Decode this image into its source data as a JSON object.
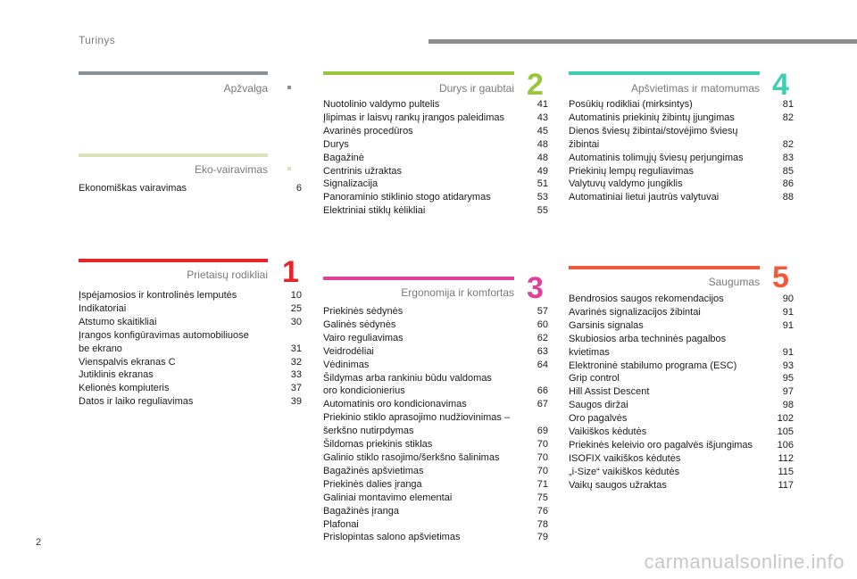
{
  "header": {
    "title": "Turinys"
  },
  "page_number": "2",
  "watermark": "carmanualsonline.info",
  "sections": {
    "apzvalga": {
      "title": "Apžvalga",
      "color": "#8c9196",
      "entries": []
    },
    "eko": {
      "title": "Eko-vairavimas",
      "color": "#dfe3bc",
      "entries": [
        {
          "label": "Ekonomiškas vairavimas",
          "page": "6"
        }
      ]
    },
    "prietaisu": {
      "title": "Prietaisų rodikliai",
      "number": "1",
      "color": "#e8232a",
      "entries": [
        {
          "label": "Įspėjamosios ir kontrolinės lemputės",
          "page": "10"
        },
        {
          "label": "Indikatoriai",
          "page": "25"
        },
        {
          "label": "Atstumo skaitikliai",
          "page": "30"
        },
        {
          "label": "Įrangos konfigūravimas automobiliuose\nbe ekrano",
          "page": "31"
        },
        {
          "label": "Vienspalvis ekranas C",
          "page": "32"
        },
        {
          "label": "Jutiklinis ekranas",
          "page": "33"
        },
        {
          "label": "Kelionės kompiuteris",
          "page": "37"
        },
        {
          "label": "Datos ir laiko reguliavimas",
          "page": "39"
        }
      ]
    },
    "durys": {
      "title": "Durys ir gaubtai",
      "number": "2",
      "color": "#9bc53d",
      "entries": [
        {
          "label": "Nuotolinio valdymo pultelis",
          "page": "41"
        },
        {
          "label": "Įlipimas ir laisvų rankų įrangos paleidimas",
          "page": "43"
        },
        {
          "label": "Avarinės procedūros",
          "page": "45"
        },
        {
          "label": "Durys",
          "page": "48"
        },
        {
          "label": "Bagažinė",
          "page": "48"
        },
        {
          "label": "Centrinis užraktas",
          "page": "49"
        },
        {
          "label": "Signalizacija",
          "page": "51"
        },
        {
          "label": "Panoraminio stiklinio stogo atidarymas",
          "page": "53"
        },
        {
          "label": "Elektriniai stiklų kėlikliai",
          "page": "55"
        }
      ]
    },
    "ergonomija": {
      "title": "Ergonomija ir komfortas",
      "number": "3",
      "color": "#e0409a",
      "entries": [
        {
          "label": "Priekinės sėdynės",
          "page": "57"
        },
        {
          "label": "Galinės sėdynės",
          "page": "60"
        },
        {
          "label": "Vairo reguliavimas",
          "page": "62"
        },
        {
          "label": "Veidrodėliai",
          "page": "63"
        },
        {
          "label": "Vėdinimas",
          "page": "64"
        },
        {
          "label": "Šildymas arba rankiniu būdu valdomas\noro kondicionierius",
          "page": "66"
        },
        {
          "label": "Automatinis oro kondicionavimas",
          "page": "67"
        },
        {
          "label": "Priekinio stiklo aprasojimo nudžiovinimas –\nšerkšno nutirpdymas",
          "page": "69"
        },
        {
          "label": "Šildomas priekinis stiklas",
          "page": "70"
        },
        {
          "label": "Galinio stiklo rasojimo/šerkšno šalinimas",
          "page": "70"
        },
        {
          "label": "Bagažinės apšvietimas",
          "page": "70"
        },
        {
          "label": "Priekinės dalies įranga",
          "page": "71"
        },
        {
          "label": "Galiniai montavimo elementai",
          "page": "75"
        },
        {
          "label": "Bagažinės įranga",
          "page": "76"
        },
        {
          "label": "Plafonai",
          "page": "78"
        },
        {
          "label": "Prislopintas salono apšvietimas",
          "page": "79"
        }
      ]
    },
    "apsvietimas": {
      "title": "Apšvietimas ir matomumas",
      "number": "4",
      "color": "#3ccfb0",
      "entries": [
        {
          "label": "Posūkių rodikliai (mirksintys)",
          "page": "81"
        },
        {
          "label": "Automatinis priekinių žibintų įjungimas",
          "page": "82"
        },
        {
          "label": "Dienos šviesų žibintai/stovėjimo šviesų\nžibintai",
          "page": "82"
        },
        {
          "label": "Automatinis tolimųjų šviesų perjungimas",
          "page": "83"
        },
        {
          "label": "Priekinių lempų reguliavimas",
          "page": "85"
        },
        {
          "label": "Valytuvų valdymo jungiklis",
          "page": "86"
        },
        {
          "label": "Automatiniai lietui jautrūs valytuvai",
          "page": "88"
        }
      ]
    },
    "saugumas": {
      "title": "Saugumas",
      "number": "5",
      "color": "#f05a3c",
      "entries": [
        {
          "label": "Bendrosios saugos rekomendacijos",
          "page": "90"
        },
        {
          "label": "Avarinės signalizacijos žibintai",
          "page": "91"
        },
        {
          "label": "Garsinis signalas",
          "page": "91"
        },
        {
          "label": "Skubiosios arba techninės pagalbos\nkvietimas",
          "page": "91"
        },
        {
          "label": "Elektroninė stabilumo programa (ESC)",
          "page": "93"
        },
        {
          "label": "Grip control",
          "page": "95"
        },
        {
          "label": "Hill Assist Descent",
          "page": "97"
        },
        {
          "label": "Saugos diržai",
          "page": "98"
        },
        {
          "label": "Oro pagalvės",
          "page": "102"
        },
        {
          "label": "Vaikiškos kėdutės",
          "page": "105"
        },
        {
          "label": "Priekinės keleivio oro pagalvės išjungimas",
          "page": "106"
        },
        {
          "label": "ISOFIX vaikiškos kėdutės",
          "page": "112"
        },
        {
          "label": "„i-Size“ vaikiškos kėdutės",
          "page": "115"
        },
        {
          "label": "Vaikų saugos užraktas",
          "page": "117"
        }
      ]
    }
  }
}
